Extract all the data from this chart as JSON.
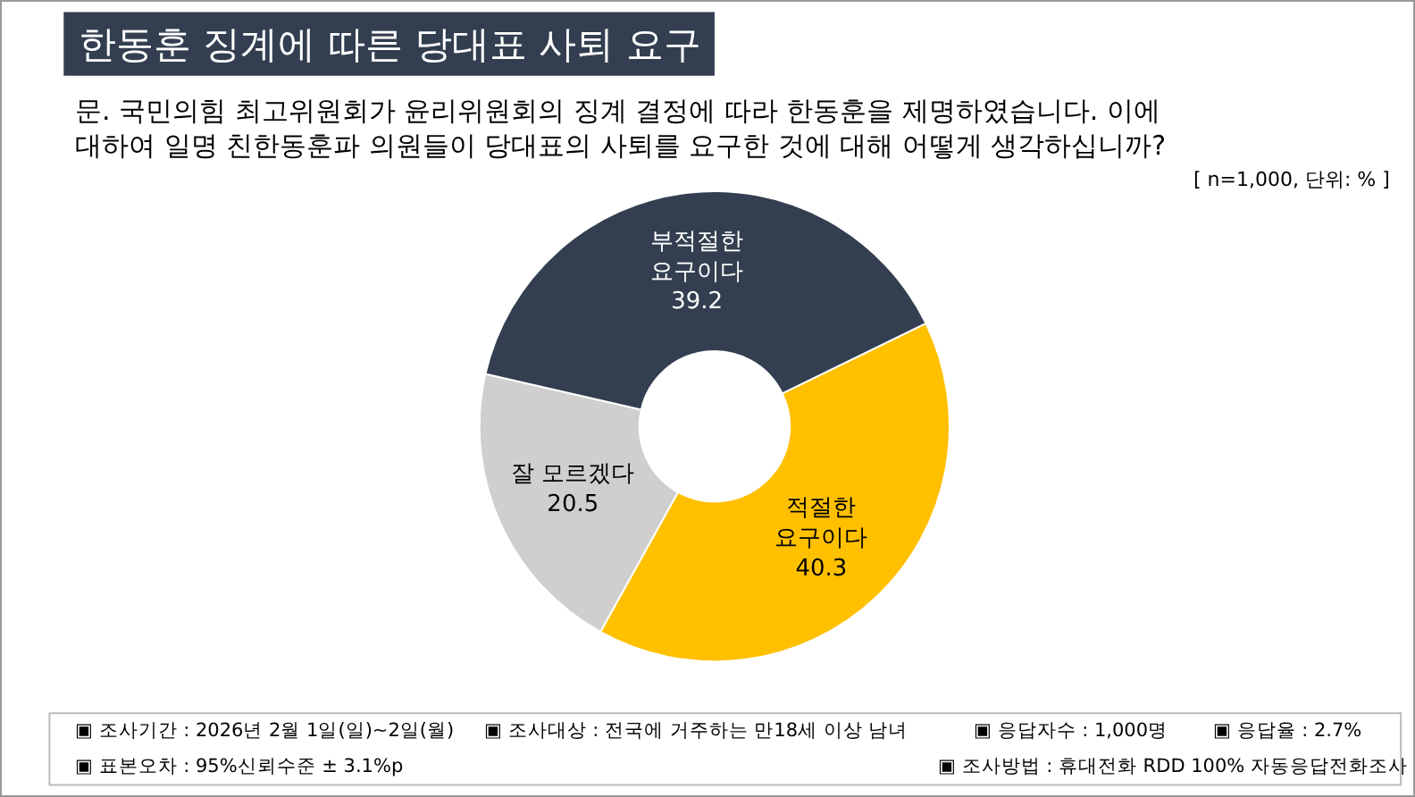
{
  "chart_data": {
    "type": "donut",
    "title": "한동훈 징계에 따른 당대표 사퇴 요구",
    "subtitle": "문. 국민의힘 최고위원회가 윤리위원회의 징계 결정에 따라 한동훈을 제명하였습니다. 이에\n대하여 일명 친한동훈파 의원들이 당대표의 사퇴를 요구한 것에 대해 어떻게 생각하십니까?",
    "categories": [
      "적절한\n요구이다",
      "잘 모르겠다",
      "부적절한\n요구이다"
    ],
    "values": [
      40.3,
      20.5,
      39.2
    ],
    "colors": [
      "#ffc000",
      "#d0cece",
      "#333f50"
    ],
    "data_labels": true,
    "legend": false,
    "annotations": [
      "[ n=1,000, 단위: % ]",
      "▣ 조사기간 : 2026년 2월 1일(일)~2일(월)",
      "▣ 조사대상 : 전국에 거주하는 만18세 이상 남녀",
      "▣ 응답자수 : 1,000명",
      "▣ 응답율 : 2.7%",
      "▣ 표본오차 : 95%신뢰수준 ± 3.1%p",
      "▣ 조사방법 : 휴대전화 RDD 100% 자동응답전화조사"
    ]
  }
}
